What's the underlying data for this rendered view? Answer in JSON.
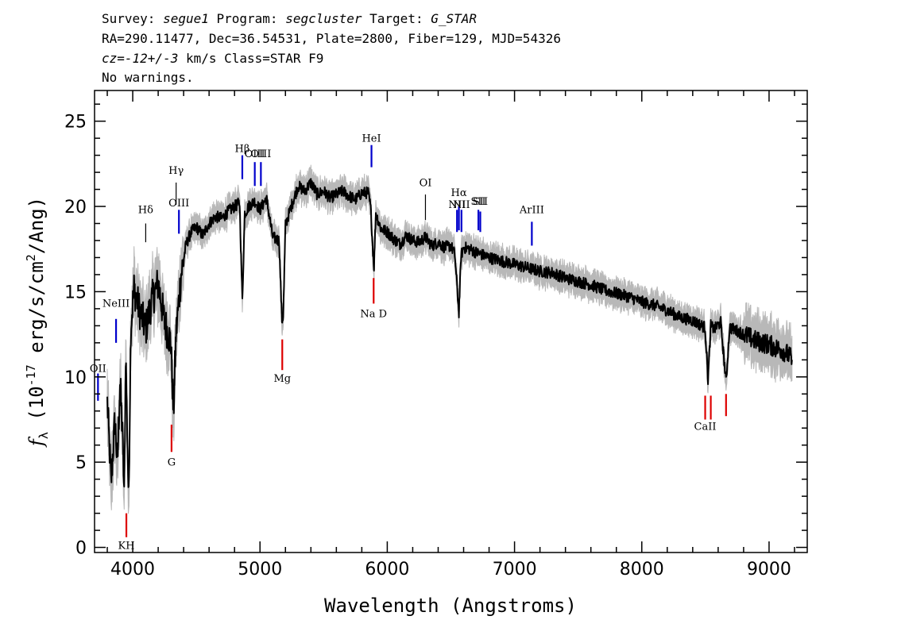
{
  "header": {
    "line1": [
      {
        "text": "Survey: ",
        "italic": false
      },
      {
        "text": "segue1",
        "italic": true
      },
      {
        "text": " Program: ",
        "italic": false
      },
      {
        "text": "segcluster",
        "italic": true
      },
      {
        "text": " Target: ",
        "italic": false
      },
      {
        "text": "G_STAR",
        "italic": true
      }
    ],
    "line2": "RA=290.11477, Dec=36.54531, Plate=2800, Fiber=129, MJD=54326",
    "line3": [
      {
        "text": "cz=-12+/-3",
        "italic": true
      },
      {
        "text": " km/s Class=STAR F9",
        "italic": false
      }
    ],
    "line4": "No warnings."
  },
  "chart_data": {
    "type": "line",
    "title": "",
    "xlabel": "Wavelength (Angstroms)",
    "ylabel": "f_λ (10^-17 erg/s/cm^2/Ang)",
    "ylabel_parts": {
      "f": "f",
      "sub": "λ",
      "pre": " (10",
      "sup1": "-17",
      "mid": " erg/s/cm",
      "sup2": "2",
      "post": "/Ang)"
    },
    "xlim": [
      3700,
      9300
    ],
    "ylim": [
      -0.3,
      26.8
    ],
    "xticks": [
      4000,
      5000,
      6000,
      7000,
      8000,
      9000
    ],
    "xtick_labels": [
      "4000",
      "5000",
      "6000",
      "7000",
      "8000",
      "9000"
    ],
    "yticks": [
      0,
      5,
      10,
      15,
      20,
      25
    ],
    "ytick_labels": [
      "0",
      "5",
      "10",
      "15",
      "20",
      "25"
    ],
    "grid": false,
    "colors": {
      "spectrum": "#000000",
      "error": "#b8b8b8",
      "emission": "#0000cc",
      "absorption": "#dd0000",
      "neutral": "#000000"
    },
    "spectrum": {
      "x": [
        3800,
        3830,
        3860,
        3880,
        3900,
        3920,
        3933,
        3945,
        3968,
        3985,
        4010,
        4050,
        4102,
        4150,
        4200,
        4250,
        4300,
        4320,
        4340,
        4380,
        4420,
        4460,
        4500,
        4550,
        4600,
        4650,
        4700,
        4750,
        4800,
        4840,
        4861,
        4880,
        4920,
        4960,
        5000,
        5050,
        5100,
        5150,
        5172,
        5183,
        5200,
        5250,
        5300,
        5350,
        5400,
        5450,
        5500,
        5550,
        5600,
        5650,
        5700,
        5750,
        5800,
        5850,
        5870,
        5890,
        5896,
        5910,
        5950,
        6000,
        6050,
        6100,
        6150,
        6200,
        6250,
        6300,
        6350,
        6400,
        6450,
        6500,
        6530,
        6563,
        6580,
        6600,
        6650,
        6700,
        6800,
        6900,
        7000,
        7100,
        7200,
        7300,
        7400,
        7500,
        7600,
        7700,
        7800,
        7900,
        8000,
        8100,
        8200,
        8300,
        8400,
        8450,
        8498,
        8520,
        8542,
        8570,
        8620,
        8662,
        8690,
        8750,
        8800,
        8850,
        8900,
        8950,
        9000,
        9050,
        9100,
        9150,
        9180
      ],
      "y": [
        8.5,
        3.8,
        7.5,
        4.8,
        9.8,
        6.5,
        2.8,
        11.5,
        2.6,
        13.0,
        15.2,
        14.0,
        12.8,
        14.5,
        15.5,
        13.2,
        12.0,
        7.8,
        12.5,
        16.0,
        17.8,
        18.5,
        18.8,
        18.3,
        19.0,
        19.4,
        19.3,
        19.7,
        20.0,
        20.2,
        14.5,
        19.6,
        20.1,
        20.3,
        19.8,
        20.5,
        18.2,
        18.0,
        13.3,
        13.6,
        18.9,
        20.1,
        21.2,
        20.9,
        21.4,
        20.7,
        20.9,
        20.5,
        20.7,
        20.9,
        20.6,
        20.4,
        20.8,
        20.8,
        19.9,
        17.0,
        16.5,
        19.6,
        18.7,
        18.5,
        18.1,
        17.8,
        18.3,
        18.0,
        17.9,
        18.2,
        17.7,
        17.9,
        17.6,
        17.7,
        17.2,
        13.8,
        17.1,
        17.6,
        17.5,
        17.3,
        17.0,
        16.8,
        16.6,
        16.4,
        16.2,
        16.1,
        15.8,
        15.6,
        15.4,
        15.1,
        14.9,
        14.7,
        14.4,
        14.2,
        13.9,
        13.5,
        13.3,
        13.1,
        12.9,
        9.8,
        13.0,
        12.8,
        13.2,
        9.7,
        12.9,
        12.7,
        12.5,
        12.3,
        12.1,
        12.0,
        11.9,
        11.7,
        11.6,
        11.3,
        11.0
      ]
    },
    "line_markers": [
      {
        "label": "OII",
        "x": 3727,
        "y0": 8.6,
        "y1": 10.2,
        "kind": "emission",
        "text_y": 10.3
      },
      {
        "label": "NeIII",
        "x": 3869,
        "y0": 12.0,
        "y1": 13.4,
        "kind": "emission",
        "text_y": 14.1
      },
      {
        "label": "KH",
        "x": 3950,
        "y0": 0.6,
        "y1": 2.0,
        "kind": "absorption",
        "text_y": -0.1
      },
      {
        "label": "Hδ",
        "x": 4102,
        "y0": 17.9,
        "y1": 19.0,
        "kind": "neutral",
        "text_y": 19.6
      },
      {
        "label": "G",
        "x": 4305,
        "y0": 5.6,
        "y1": 7.2,
        "kind": "absorption",
        "text_y": 4.8
      },
      {
        "label": "Hγ",
        "x": 4341,
        "y0": 20.1,
        "y1": 21.4,
        "kind": "neutral",
        "text_y": 21.9
      },
      {
        "label": "OIII",
        "x": 4363,
        "y0": 18.4,
        "y1": 19.8,
        "kind": "emission",
        "text_y": 20.0
      },
      {
        "label": "Hβ",
        "x": 4861,
        "y0": 21.6,
        "y1": 23.0,
        "kind": "emission",
        "text_y": 23.2
      },
      {
        "label": "OIII",
        "x": 4959,
        "y0": 21.2,
        "y1": 22.6,
        "kind": "emission",
        "text_y": 22.9
      },
      {
        "label": "OIII",
        "x": 5007,
        "y0": 21.2,
        "y1": 22.6,
        "kind": "emission",
        "text_y": 22.9
      },
      {
        "label": "Mg",
        "x": 5175,
        "y0": 10.4,
        "y1": 12.2,
        "kind": "absorption",
        "text_y": 9.7
      },
      {
        "label": "HeI",
        "x": 5876,
        "y0": 22.3,
        "y1": 23.6,
        "kind": "emission",
        "text_y": 23.8
      },
      {
        "label": "Na D",
        "x": 5893,
        "y0": 14.3,
        "y1": 15.8,
        "kind": "absorption",
        "text_y": 13.5
      },
      {
        "label": "OI",
        "x": 6300,
        "y0": 19.2,
        "y1": 20.7,
        "kind": "neutral",
        "text_y": 21.2
      },
      {
        "label": "NII",
        "x": 6548,
        "y0": 18.5,
        "y1": 19.8,
        "kind": "emission",
        "text_y": 19.9
      },
      {
        "label": "Hα",
        "x": 6563,
        "y0": 18.6,
        "y1": 20.0,
        "kind": "emission",
        "text_y": 20.6
      },
      {
        "label": "NII",
        "x": 6583,
        "y0": 18.5,
        "y1": 19.8,
        "kind": "emission",
        "text_y": 19.9
      },
      {
        "label": "SII",
        "x": 6716,
        "y0": 18.6,
        "y1": 19.8,
        "kind": "emission",
        "text_y": 20.1
      },
      {
        "label": "SII",
        "x": 6731,
        "y0": 18.5,
        "y1": 19.7,
        "kind": "emission",
        "text_y": 20.1
      },
      {
        "label": "ArIII",
        "x": 7136,
        "y0": 17.7,
        "y1": 19.1,
        "kind": "emission",
        "text_y": 19.6
      },
      {
        "label": "CaII",
        "x": 8498,
        "y0": 7.5,
        "y1": 8.9,
        "kind": "absorption",
        "text_y": 6.9
      },
      {
        "label": "",
        "x": 8542,
        "y0": 7.5,
        "y1": 8.9,
        "kind": "absorption",
        "text_y": 6.9
      },
      {
        "label": "",
        "x": 8662,
        "y0": 7.7,
        "y1": 9.0,
        "kind": "absorption",
        "text_y": 6.9
      }
    ]
  }
}
